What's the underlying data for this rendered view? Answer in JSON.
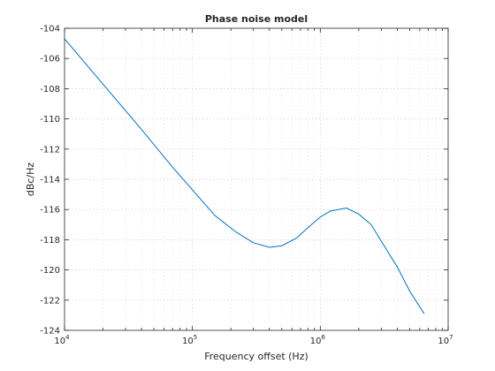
{
  "chart_data": {
    "type": "line",
    "title": "Phase noise model",
    "xlabel": "Frequency offset (Hz)",
    "ylabel": "dBc/Hz",
    "xscale": "log",
    "xlim": [
      10000,
      10000000
    ],
    "ylim": [
      -124,
      -104
    ],
    "xticks": [
      10000,
      100000,
      1000000,
      10000000
    ],
    "xtick_labels": [
      {
        "base": "10",
        "exp": "4"
      },
      {
        "base": "10",
        "exp": "5"
      },
      {
        "base": "10",
        "exp": "6"
      },
      {
        "base": "10",
        "exp": "7"
      }
    ],
    "yticks": [
      -124,
      -122,
      -120,
      -118,
      -116,
      -114,
      -112,
      -110,
      -108,
      -106,
      -104
    ],
    "ytick_labels": [
      "-124",
      "-122",
      "-120",
      "-118",
      "-116",
      "-114",
      "-112",
      "-110",
      "-108",
      "-106",
      "-104"
    ],
    "grid": true,
    "minor_grid": true,
    "series": [
      {
        "color": "#0072BD",
        "x": [
          10000,
          20000,
          40000,
          70000,
          150000,
          220000,
          300000,
          400000,
          500000,
          650000,
          800000,
          1000000,
          1200000,
          1600000,
          2000000,
          2500000,
          3000000,
          4000000,
          5000000,
          6500000
        ],
        "y": [
          -104.7,
          -107.7,
          -110.7,
          -113.2,
          -116.4,
          -117.5,
          -118.2,
          -118.5,
          -118.4,
          -117.9,
          -117.2,
          -116.5,
          -116.1,
          -115.9,
          -116.3,
          -117.0,
          -118.1,
          -119.8,
          -121.4,
          -122.9
        ]
      }
    ]
  }
}
